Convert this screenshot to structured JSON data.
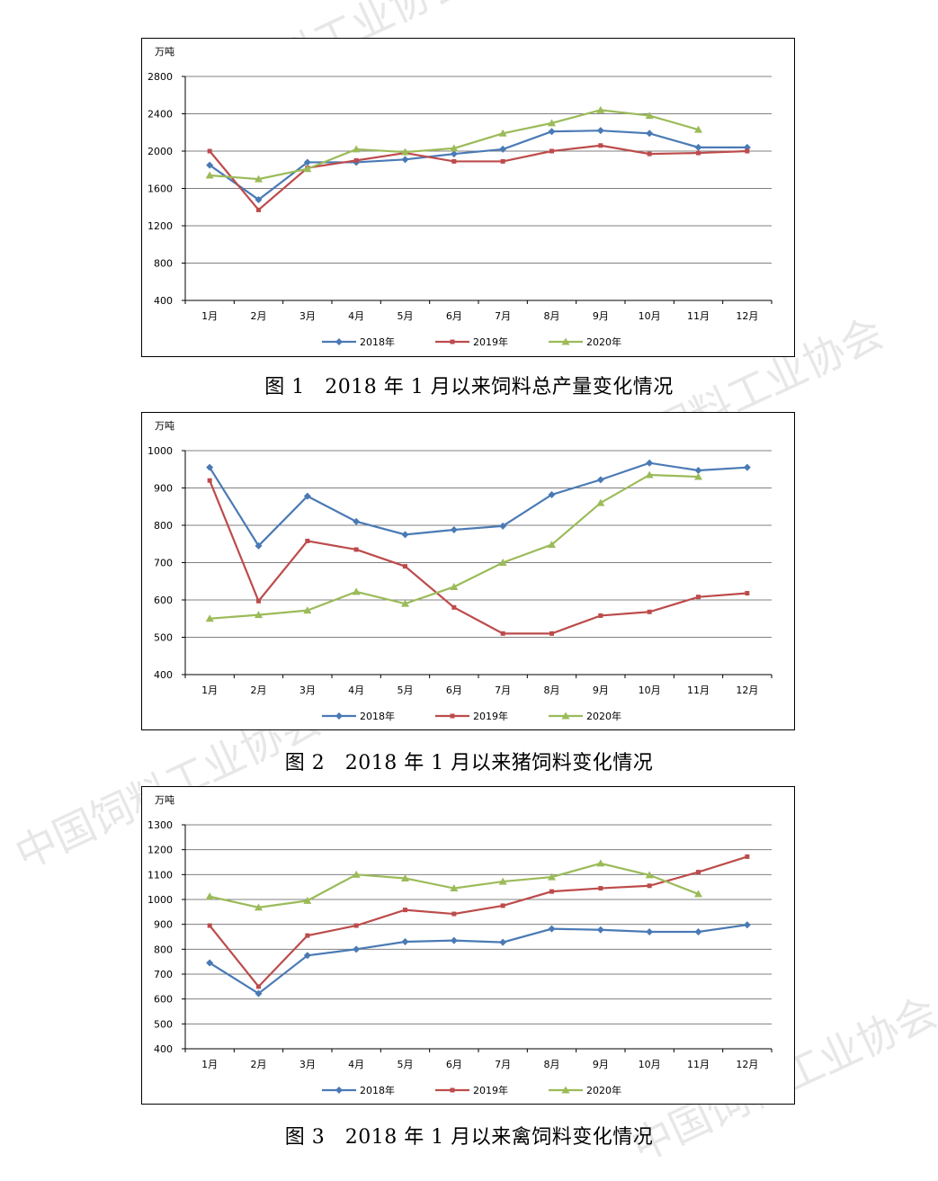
{
  "watermark": "中国饲料工业协会",
  "colors": {
    "s2018": "#4a7ab5",
    "s2019": "#bd4b4b",
    "s2020": "#9bbb59",
    "grid": "#808080"
  },
  "months": [
    "1月",
    "2月",
    "3月",
    "4月",
    "5月",
    "6月",
    "7月",
    "8月",
    "9月",
    "10月",
    "11月",
    "12月"
  ],
  "chart_data": [
    {
      "type": "line",
      "unit": "万吨",
      "caption": "图 1　2018 年 1 月以来饲料总产量变化情况",
      "ylim": [
        400,
        2800
      ],
      "yticks": [
        "400",
        "800",
        "1200",
        "1600",
        "2000",
        "2400",
        "2800"
      ],
      "categories": [
        "1月",
        "2月",
        "3月",
        "4月",
        "5月",
        "6月",
        "7月",
        "8月",
        "9月",
        "10月",
        "11月",
        "12月"
      ],
      "series": [
        {
          "name": "2018年",
          "values": [
            1850,
            1480,
            1880,
            1880,
            1910,
            1970,
            2020,
            2210,
            2220,
            2190,
            2040,
            2040
          ]
        },
        {
          "name": "2019年",
          "values": [
            2000,
            1370,
            1820,
            1900,
            1980,
            1890,
            1890,
            2000,
            2060,
            1970,
            1980,
            2000
          ]
        },
        {
          "name": "2020年",
          "values": [
            1740,
            1700,
            1810,
            2020,
            1990,
            2030,
            2190,
            2300,
            2440,
            2380,
            2230,
            null
          ]
        }
      ]
    },
    {
      "type": "line",
      "unit": "万吨",
      "caption": "图 2　2018 年 1 月以来猪饲料变化情况",
      "ylim": [
        400,
        1000
      ],
      "yticks": [
        "400",
        "500",
        "600",
        "700",
        "800",
        "900",
        "1000"
      ],
      "categories": [
        "1月",
        "2月",
        "3月",
        "4月",
        "5月",
        "6月",
        "7月",
        "8月",
        "9月",
        "10月",
        "11月",
        "12月"
      ],
      "series": [
        {
          "name": "2018年",
          "values": [
            955,
            745,
            878,
            810,
            775,
            788,
            798,
            882,
            922,
            967,
            947,
            955
          ]
        },
        {
          "name": "2019年",
          "values": [
            920,
            597,
            758,
            735,
            690,
            580,
            510,
            510,
            558,
            568,
            608,
            618
          ]
        },
        {
          "name": "2020年",
          "values": [
            550,
            560,
            572,
            622,
            590,
            635,
            700,
            748,
            860,
            935,
            930,
            null
          ]
        }
      ]
    },
    {
      "type": "line",
      "unit": "万吨",
      "caption": "图 3　2018 年 1 月以来禽饲料变化情况",
      "ylim": [
        400,
        1300
      ],
      "yticks": [
        "400",
        "500",
        "600",
        "700",
        "800",
        "900",
        "1000",
        "1100",
        "1200",
        "1300"
      ],
      "categories": [
        "1月",
        "2月",
        "3月",
        "4月",
        "5月",
        "6月",
        "7月",
        "8月",
        "9月",
        "10月",
        "11月",
        "12月"
      ],
      "series": [
        {
          "name": "2018年",
          "values": [
            745,
            622,
            775,
            800,
            830,
            835,
            828,
            882,
            878,
            870,
            870,
            898
          ]
        },
        {
          "name": "2019年",
          "values": [
            895,
            650,
            855,
            895,
            958,
            942,
            975,
            1032,
            1045,
            1055,
            1110,
            1172
          ]
        },
        {
          "name": "2020年",
          "values": [
            1012,
            968,
            995,
            1100,
            1085,
            1045,
            1072,
            1090,
            1145,
            1098,
            1022,
            null
          ]
        }
      ]
    }
  ]
}
